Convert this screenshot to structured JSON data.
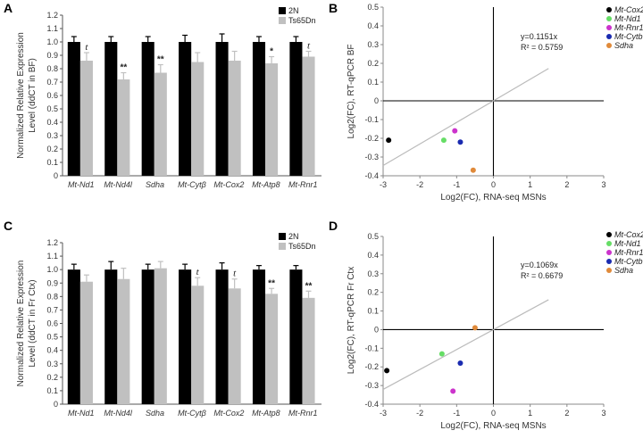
{
  "panels": [
    {
      "letter": "A"
    },
    {
      "letter": "B"
    },
    {
      "letter": "C"
    },
    {
      "letter": "D"
    }
  ],
  "colors": {
    "group1": "#000000",
    "group2": "#c0c0c0",
    "trendline": "#bbbbbb"
  },
  "chart_data": [
    {
      "type": "bar",
      "panel": "A",
      "ylabel": "Normalized Relative Expression Level (ddCT in BF)",
      "ylim": [
        0,
        1.2
      ],
      "yticks": [
        "0",
        "0.1",
        "0.2",
        "0.3",
        "0.4",
        "0.5",
        "0.6",
        "0.7",
        "0.8",
        "0.9",
        "1.0",
        "1.1",
        "1.2"
      ],
      "categories": [
        "Mt-Nd1",
        "Mt-Nd4l",
        "Sdha",
        "Mt-Cytβ",
        "Mt-Cox2",
        "Mt-Atp8",
        "Mt-Rnr1"
      ],
      "series": [
        {
          "name": "2N",
          "values": [
            1.0,
            1.0,
            1.0,
            1.0,
            1.0,
            1.0,
            1.0
          ],
          "errors": [
            0.04,
            0.04,
            0.04,
            0.05,
            0.06,
            0.04,
            0.04
          ]
        },
        {
          "name": "Ts65Dn",
          "values": [
            0.86,
            0.72,
            0.77,
            0.85,
            0.86,
            0.84,
            0.89
          ],
          "errors": [
            0.06,
            0.05,
            0.06,
            0.07,
            0.07,
            0.05,
            0.04
          ]
        }
      ],
      "significance": [
        "t",
        "**",
        "**",
        "",
        "",
        "*",
        "t"
      ],
      "legend": [
        "2N",
        "Ts65Dn"
      ]
    },
    {
      "type": "scatter",
      "panel": "B",
      "xlabel": "Log2(FC), RNA-seq MSNs",
      "ylabel": "Log2(FC), RT-qPCR BF",
      "xlim": [
        -3,
        3
      ],
      "ylim": [
        -0.4,
        0.5
      ],
      "xticks": [
        "-3",
        "-2",
        "-1",
        "0",
        "1",
        "2",
        "3"
      ],
      "yticks": [
        "0.5",
        "0.4",
        "0.3",
        "0.2",
        "0.1",
        "0",
        "-0.1",
        "-0.2",
        "-0.3",
        "-0.4"
      ],
      "points": [
        {
          "name": "Mt-Cox2",
          "x": -2.85,
          "y": -0.21,
          "color": "#000000"
        },
        {
          "name": "Mt-Nd1",
          "x": -1.35,
          "y": -0.21,
          "color": "#66dd66"
        },
        {
          "name": "Mt-Rnr1",
          "x": -1.05,
          "y": -0.16,
          "color": "#cc33cc"
        },
        {
          "name": "Mt-Cytb",
          "x": -0.9,
          "y": -0.22,
          "color": "#1a2bb0"
        },
        {
          "name": "Sdha",
          "x": -0.55,
          "y": -0.37,
          "color": "#e08a3a"
        }
      ],
      "equation": "y=0.1151x",
      "r2": "R² = 0.5759",
      "slope": 0.1151
    },
    {
      "type": "bar",
      "panel": "C",
      "ylabel": "Normalized Relative Expression Level (ddCT in Fr Ctx)",
      "ylim": [
        0,
        1.2
      ],
      "yticks": [
        "0",
        "0.1",
        "0.2",
        "0.3",
        "0.4",
        "0.5",
        "0.6",
        "0.7",
        "0.8",
        "0.9",
        "1.0",
        "1.1",
        "1.2"
      ],
      "categories": [
        "Mt-Nd1",
        "Mt-Nd4l",
        "Sdha",
        "Mt-Cytβ",
        "Mt-Cox2",
        "Mt-Atp8",
        "Mt-Rnr1"
      ],
      "series": [
        {
          "name": "2N",
          "values": [
            1.0,
            1.0,
            1.0,
            1.0,
            1.0,
            1.0,
            1.0
          ],
          "errors": [
            0.04,
            0.06,
            0.04,
            0.04,
            0.05,
            0.03,
            0.03
          ]
        },
        {
          "name": "Ts65Dn",
          "values": [
            0.91,
            0.93,
            1.01,
            0.88,
            0.86,
            0.82,
            0.79
          ],
          "errors": [
            0.05,
            0.08,
            0.05,
            0.06,
            0.07,
            0.04,
            0.05
          ]
        }
      ],
      "significance": [
        "",
        "",
        "",
        "t",
        "t",
        "**",
        "**"
      ],
      "legend": [
        "2N",
        "Ts65Dn"
      ]
    },
    {
      "type": "scatter",
      "panel": "D",
      "xlabel": "Log2(FC), RNA-seq MSNs",
      "ylabel": "Log2(FC), RT-qPCR Fr Ctx",
      "xlim": [
        -3,
        3
      ],
      "ylim": [
        -0.4,
        0.5
      ],
      "xticks": [
        "-3",
        "-2",
        "-1",
        "0",
        "1",
        "2",
        "3"
      ],
      "yticks": [
        "0.5",
        "0.4",
        "0.3",
        "0.2",
        "0.1",
        "0",
        "-0.1",
        "-0.2",
        "-0.3",
        "-0.4"
      ],
      "points": [
        {
          "name": "Mt-Cox2",
          "x": -2.9,
          "y": -0.22,
          "color": "#000000"
        },
        {
          "name": "Mt-Nd1",
          "x": -1.4,
          "y": -0.13,
          "color": "#66dd66"
        },
        {
          "name": "Mt-Rnr1",
          "x": -1.1,
          "y": -0.33,
          "color": "#cc33cc"
        },
        {
          "name": "Mt-Cytb",
          "x": -0.9,
          "y": -0.18,
          "color": "#1a2bb0"
        },
        {
          "name": "Sdha",
          "x": -0.5,
          "y": 0.01,
          "color": "#e08a3a"
        }
      ],
      "equation": "y=0.1069x",
      "r2": "R² = 0.6679",
      "slope": 0.1069
    }
  ]
}
